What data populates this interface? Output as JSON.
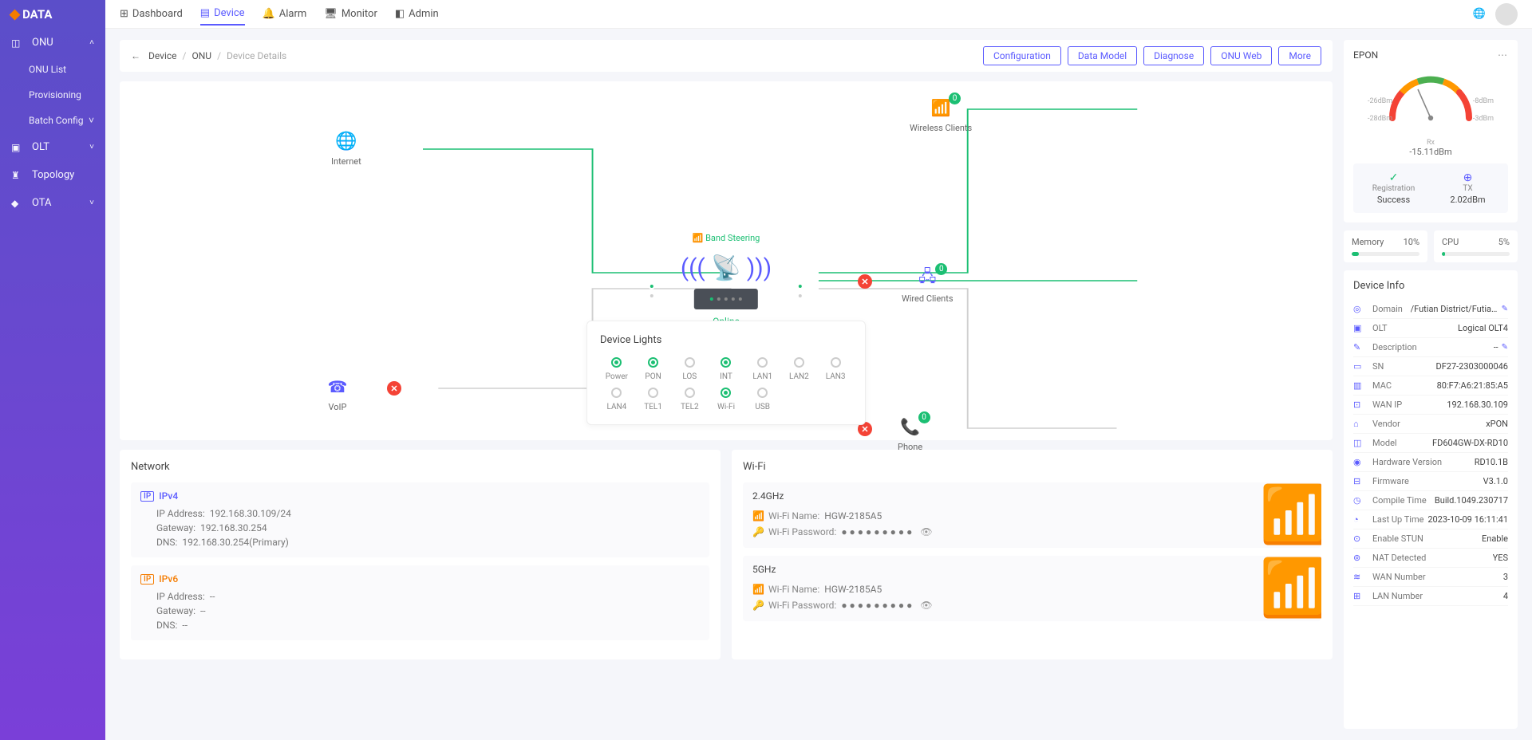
{
  "logo": "DATA",
  "topnav": [
    {
      "label": "Dashboard",
      "icon": "⊞"
    },
    {
      "label": "Device",
      "icon": "▤",
      "active": true
    },
    {
      "label": "Alarm",
      "icon": "🔔"
    },
    {
      "label": "Monitor",
      "icon": "🖥"
    },
    {
      "label": "Admin",
      "icon": "◧"
    }
  ],
  "sidebar": [
    {
      "label": "ONU",
      "icon": "◫",
      "open": true,
      "children": [
        {
          "label": "ONU List"
        },
        {
          "label": "Provisioning"
        },
        {
          "label": "Batch Config",
          "chev": true
        }
      ]
    },
    {
      "label": "OLT",
      "icon": "▣",
      "chev": true
    },
    {
      "label": "Topology",
      "icon": "♜"
    },
    {
      "label": "OTA",
      "icon": "◆",
      "chev": true
    }
  ],
  "breadcrumb": {
    "back": "←",
    "parts": [
      "Device",
      "ONU"
    ],
    "current": "Device Details"
  },
  "breadcrumb_buttons": [
    "Configuration",
    "Data Model",
    "Diagnose",
    "ONU Web",
    "More"
  ],
  "topo": {
    "band_steering": "Band Steering",
    "online": "Online",
    "nodes": {
      "internet": {
        "label": "Internet",
        "color": "#5b5bff"
      },
      "voip": {
        "label": "VoIP",
        "color": "#5b5bff",
        "error": true
      },
      "wireless": {
        "label": "Wireless Clients",
        "count": 0,
        "color": "#5b5bff"
      },
      "wired": {
        "label": "Wired Clients",
        "count": 0,
        "color": "#5b5bff",
        "error": true
      },
      "phone": {
        "label": "Phone",
        "count": 0,
        "color": "#5b5bff",
        "error": true
      }
    },
    "line_color": "#1cbf73",
    "line_off_color": "#d0d0d0"
  },
  "lights": {
    "title": "Device Lights",
    "items": [
      {
        "label": "Power",
        "on": true
      },
      {
        "label": "PON",
        "on": true
      },
      {
        "label": "LOS",
        "on": false
      },
      {
        "label": "INT",
        "on": true
      },
      {
        "label": "LAN1",
        "on": false
      },
      {
        "label": "LAN2",
        "on": false
      },
      {
        "label": "LAN3",
        "on": false
      },
      {
        "label": "LAN4",
        "on": false
      },
      {
        "label": "TEL1",
        "on": false
      },
      {
        "label": "TEL2",
        "on": false
      },
      {
        "label": "Wi-Fi",
        "on": true
      },
      {
        "label": "USB",
        "on": false
      }
    ]
  },
  "network": {
    "title": "Network",
    "ipv4": {
      "label": "IPv4",
      "rows": [
        {
          "k": "IP Address:",
          "v": "192.168.30.109/24"
        },
        {
          "k": "Gateway:",
          "v": "192.168.30.254"
        },
        {
          "k": "DNS:",
          "v": "192.168.30.254(Primary)"
        }
      ]
    },
    "ipv6": {
      "label": "IPv6",
      "rows": [
        {
          "k": "IP Address:",
          "v": "--"
        },
        {
          "k": "Gateway:",
          "v": "--"
        },
        {
          "k": "DNS:",
          "v": "--"
        }
      ]
    }
  },
  "wifi": {
    "title": "Wi-Fi",
    "bands": [
      {
        "freq": "2.4GHz",
        "name_k": "Wi-Fi Name:",
        "name_v": "HGW-2185A5",
        "pass_k": "Wi-Fi Password:",
        "pass_v": "● ● ● ● ● ● ● ● ●"
      },
      {
        "freq": "5GHz",
        "name_k": "Wi-Fi Name:",
        "name_v": "HGW-2185A5",
        "pass_k": "Wi-Fi Password:",
        "pass_v": "● ● ● ● ● ● ● ● ●"
      }
    ]
  },
  "epon": {
    "title": "EPON",
    "gauge": {
      "rx_label": "Rx",
      "rx_value": "-15.11dBm",
      "labels": [
        "-26dBm",
        "-8dBm",
        "-28dBm",
        "-3dBm"
      ],
      "colors": [
        "#f44336",
        "#ff9800",
        "#4caf50",
        "#ff9800",
        "#f44336"
      ]
    },
    "stats": [
      {
        "label": "Registration",
        "value": "Success",
        "icon": "✓",
        "color": "#1cbf73"
      },
      {
        "label": "TX",
        "value": "2.02dBm",
        "icon": "⊕",
        "color": "#5b5bff"
      }
    ]
  },
  "usage": [
    {
      "label": "Memory",
      "value": "10%",
      "pct": 10,
      "color": "#1cbf73"
    },
    {
      "label": "CPU",
      "value": "5%",
      "pct": 5,
      "color": "#1cbf73"
    }
  ],
  "device_info": {
    "title": "Device Info",
    "rows": [
      {
        "icon": "◎",
        "k": "Domain",
        "v": "/Futian District/Futian S...",
        "edit": true
      },
      {
        "icon": "▣",
        "k": "OLT",
        "v": "Logical OLT4"
      },
      {
        "icon": "✎",
        "k": "Description",
        "v": "--",
        "edit": true
      },
      {
        "icon": "▭",
        "k": "SN",
        "v": "DF27-2303000046"
      },
      {
        "icon": "▥",
        "k": "MAC",
        "v": "80:F7:A6:21:85:A5"
      },
      {
        "icon": "⊡",
        "k": "WAN IP",
        "v": "192.168.30.109"
      },
      {
        "icon": "⌂",
        "k": "Vendor",
        "v": "xPON"
      },
      {
        "icon": "◫",
        "k": "Model",
        "v": "FD604GW-DX-RD10"
      },
      {
        "icon": "◉",
        "k": "Hardware Version",
        "v": "RD10.1B"
      },
      {
        "icon": "⊟",
        "k": "Firmware",
        "v": "V3.1.0"
      },
      {
        "icon": "◷",
        "k": "Compile Time",
        "v": "Build.1049.230717"
      },
      {
        "icon": "◔",
        "k": "Last Up Time",
        "v": "2023-10-09 16:11:41"
      },
      {
        "icon": "⊙",
        "k": "Enable STUN",
        "v": "Enable"
      },
      {
        "icon": "⊚",
        "k": "NAT Detected",
        "v": "YES"
      },
      {
        "icon": "≋",
        "k": "WAN Number",
        "v": "3"
      },
      {
        "icon": "⊞",
        "k": "LAN Number",
        "v": "4"
      }
    ]
  }
}
